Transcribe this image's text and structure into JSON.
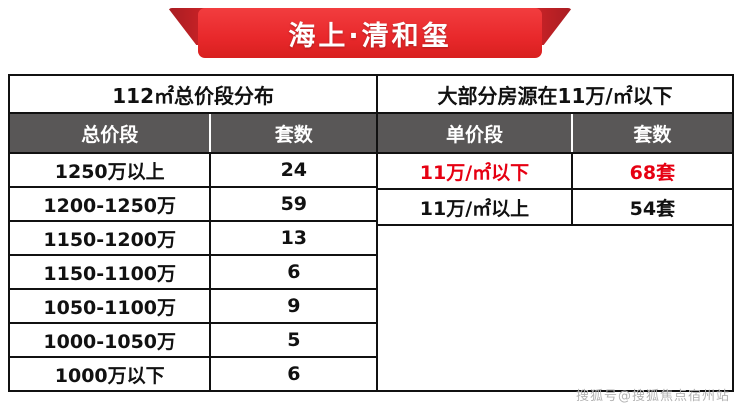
{
  "banner": {
    "title": "海上·清和玺"
  },
  "colors": {
    "banner_red": "#e8282b",
    "header_bg": "#595757",
    "highlight_red": "#e60012",
    "border": "#111111"
  },
  "chart_data": [
    {
      "type": "table",
      "title": "112㎡总价段分布",
      "columns": [
        "总价段",
        "套数"
      ],
      "rows": [
        [
          "1250万以上",
          "24"
        ],
        [
          "1200-1250万",
          "59"
        ],
        [
          "1150-1200万",
          "13"
        ],
        [
          "1150-1100万",
          "6"
        ],
        [
          "1050-1100万",
          "9"
        ],
        [
          "1000-1050万",
          "5"
        ],
        [
          "1000万以下",
          "6"
        ]
      ]
    },
    {
      "type": "table",
      "title": "大部分房源在11万/㎡以下",
      "columns": [
        "单价段",
        "套数"
      ],
      "rows": [
        [
          "11万/㎡以下",
          "68套"
        ],
        [
          "11万/㎡以上",
          "54套"
        ]
      ],
      "highlight_row": 0
    }
  ],
  "watermark": "搜狐号@搜狐焦点宿州站"
}
